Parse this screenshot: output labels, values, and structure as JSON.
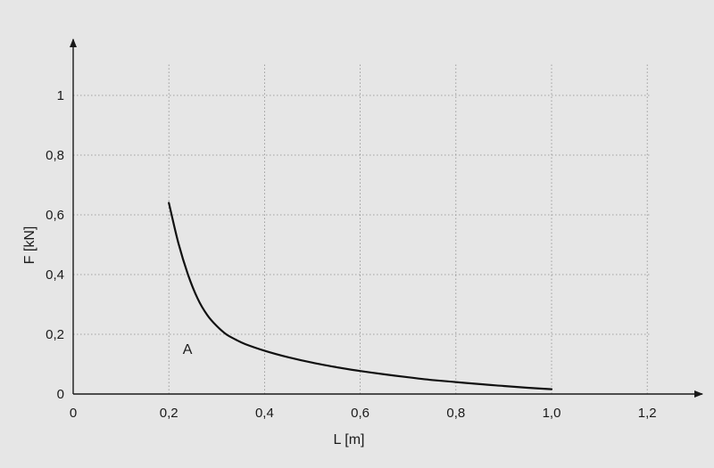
{
  "chart_data": {
    "type": "line",
    "xlabel": "L [m]",
    "ylabel": "F [kN]",
    "xlim": [
      0,
      1.35
    ],
    "ylim": [
      0,
      1.17
    ],
    "x_ticks": [
      0,
      0.2,
      0.4,
      0.6,
      0.8,
      1.0,
      1.2
    ],
    "x_tick_labels": [
      "0",
      "0,2",
      "0,4",
      "0,6",
      "0,8",
      "1,0",
      "1,2"
    ],
    "y_ticks": [
      0,
      0.2,
      0.4,
      0.6,
      0.8,
      1
    ],
    "y_tick_labels": [
      "0",
      "0,2",
      "0,4",
      "0,6",
      "0,8",
      "1"
    ],
    "grid": true,
    "series": [
      {
        "x": [
          0.2,
          0.22,
          0.24,
          0.26,
          0.28,
          0.3,
          0.32,
          0.34,
          0.36,
          0.4,
          0.45,
          0.5,
          0.55,
          0.6,
          0.65,
          0.7,
          0.75,
          0.8,
          0.85,
          0.9,
          0.95,
          1.0
        ],
        "y": [
          0.64,
          0.505,
          0.4,
          0.32,
          0.265,
          0.228,
          0.2,
          0.182,
          0.167,
          0.145,
          0.123,
          0.105,
          0.09,
          0.077,
          0.066,
          0.056,
          0.047,
          0.04,
          0.033,
          0.027,
          0.021,
          0.016
        ]
      }
    ],
    "annotations": [
      {
        "text": "A",
        "x": 0.27,
        "y": 0.15
      }
    ]
  }
}
